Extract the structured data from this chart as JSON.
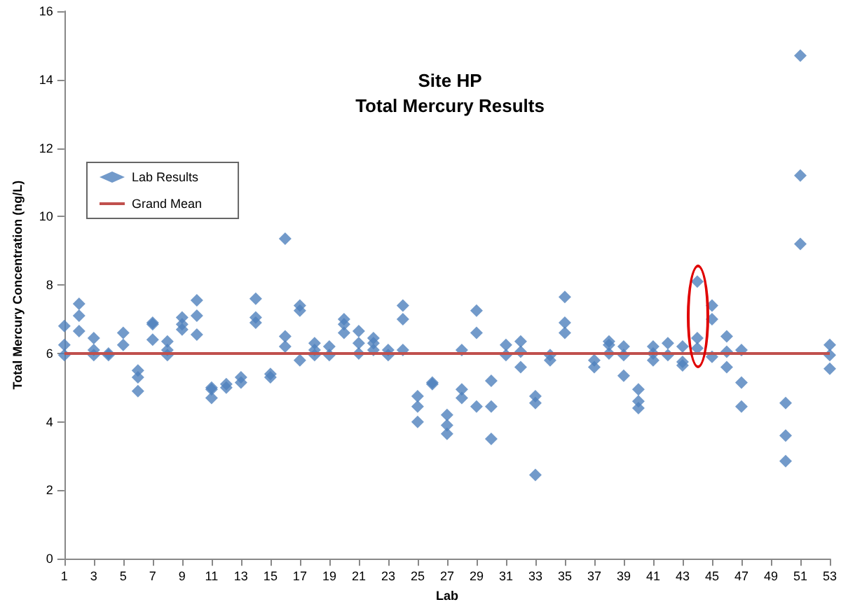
{
  "chart_data": {
    "type": "scatter",
    "title": "Site HP",
    "subtitle": "Total Mercury Results",
    "xlabel": "Lab",
    "ylabel": "Total Mercury Concentration (ng/L)",
    "xlim": [
      1,
      53
    ],
    "xticks": [
      1,
      3,
      5,
      7,
      9,
      11,
      13,
      15,
      17,
      19,
      21,
      23,
      25,
      27,
      29,
      31,
      33,
      35,
      37,
      39,
      41,
      43,
      45,
      47,
      49,
      51,
      53
    ],
    "ylim": [
      0,
      16
    ],
    "yticks": [
      0,
      2,
      4,
      6,
      8,
      10,
      12,
      14,
      16
    ],
    "grid": false,
    "legend": "top left",
    "marker": "diamond",
    "series": [
      {
        "name": "Lab Results",
        "color": "#4f81bd",
        "x": [
          1,
          1,
          1,
          2,
          2,
          2,
          3,
          3,
          3,
          4,
          4,
          5,
          5,
          6,
          6,
          6,
          7,
          7,
          7,
          8,
          8,
          8,
          9,
          9,
          9,
          10,
          10,
          10,
          11,
          11,
          11,
          12,
          12,
          13,
          13,
          14,
          14,
          14,
          15,
          15,
          16,
          16,
          16,
          17,
          17,
          17,
          18,
          18,
          18,
          19,
          19,
          20,
          20,
          20,
          21,
          21,
          21,
          22,
          22,
          22,
          23,
          23,
          24,
          24,
          24,
          25,
          25,
          25,
          26,
          26,
          27,
          27,
          27,
          28,
          28,
          28,
          29,
          29,
          29,
          30,
          30,
          30,
          31,
          31,
          32,
          32,
          32,
          33,
          33,
          33,
          34,
          34,
          35,
          35,
          35,
          37,
          37,
          38,
          38,
          38,
          39,
          39,
          39,
          40,
          40,
          40,
          41,
          41,
          41,
          42,
          42,
          43,
          43,
          43,
          44,
          44,
          44,
          45,
          45,
          45,
          46,
          46,
          46,
          47,
          47,
          47,
          50,
          50,
          50,
          51,
          51,
          51,
          53,
          53,
          53
        ],
        "values": [
          6.8,
          6.25,
          5.95,
          7.45,
          7.1,
          6.65,
          6.45,
          6.1,
          5.95,
          6.0,
          5.95,
          6.6,
          6.25,
          5.5,
          5.3,
          4.9,
          6.9,
          6.85,
          6.4,
          6.35,
          6.1,
          5.95,
          7.05,
          6.85,
          6.7,
          7.55,
          7.1,
          6.55,
          5.0,
          4.95,
          4.7,
          5.1,
          5.0,
          5.3,
          5.15,
          7.6,
          7.05,
          6.9,
          5.4,
          5.3,
          9.35,
          6.5,
          6.2,
          7.4,
          7.25,
          5.8,
          6.3,
          6.1,
          5.95,
          6.2,
          5.95,
          7.0,
          6.85,
          6.6,
          6.65,
          6.3,
          6.0,
          6.45,
          6.3,
          6.1,
          6.1,
          5.95,
          7.4,
          7.0,
          6.1,
          4.75,
          4.45,
          4.0,
          5.15,
          5.1,
          4.2,
          3.9,
          3.65,
          6.1,
          4.95,
          4.7,
          7.25,
          6.6,
          4.45,
          5.2,
          4.45,
          3.5,
          6.25,
          5.95,
          6.35,
          6.05,
          5.6,
          4.75,
          4.55,
          2.45,
          5.95,
          5.8,
          7.65,
          6.9,
          6.6,
          5.8,
          5.6,
          6.35,
          6.25,
          6.0,
          6.2,
          5.95,
          5.35,
          4.95,
          4.6,
          4.4,
          6.2,
          6.0,
          5.8,
          6.3,
          5.95,
          6.2,
          5.75,
          5.65,
          8.1,
          6.45,
          6.15,
          7.4,
          7.0,
          5.9,
          6.5,
          6.05,
          5.6,
          6.1,
          5.15,
          4.45,
          4.55,
          3.6,
          2.85,
          14.7,
          11.2,
          9.2,
          6.25,
          5.95,
          5.55
        ]
      },
      {
        "name": "Grand Mean",
        "type": "line",
        "color": "#c0504d",
        "marker": "none",
        "x": [
          1,
          53
        ],
        "values": [
          6.0,
          6.0
        ]
      }
    ]
  }
}
